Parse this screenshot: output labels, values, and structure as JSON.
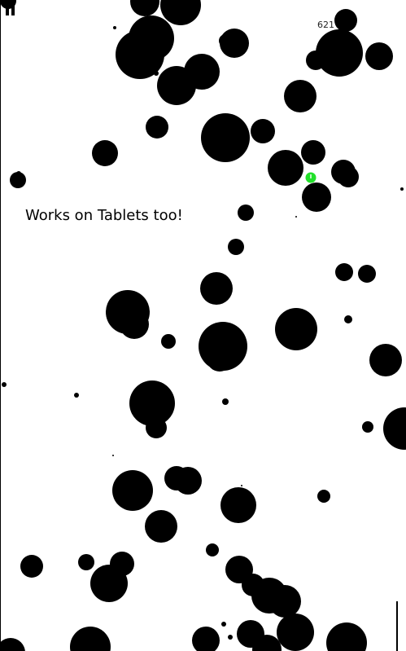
{
  "hud": {
    "score": "621",
    "pause_icon": "pause-icon"
  },
  "message": {
    "tagline": "Works on Tablets too!"
  },
  "colors": {
    "background": "#ffffff",
    "obstacle": "#000000",
    "player": "#22e02a"
  },
  "player": {
    "icon": "clock-icon"
  }
}
